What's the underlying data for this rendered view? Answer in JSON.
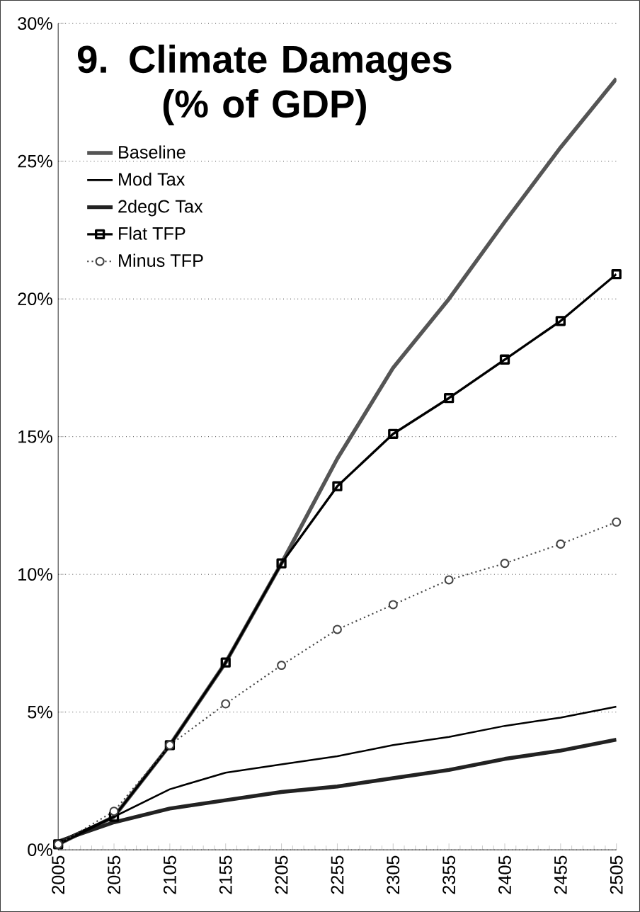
{
  "chart_data": {
    "type": "line",
    "title": "9. Climate Damages (% of GDP)",
    "x": [
      2005,
      2055,
      2105,
      2155,
      2205,
      2255,
      2305,
      2355,
      2405,
      2455,
      2505
    ],
    "series": [
      {
        "name": "Baseline",
        "color": "#555555",
        "marker": "none",
        "line_style": "solid",
        "values": [
          0.2,
          1.2,
          3.8,
          6.8,
          10.4,
          14.2,
          17.5,
          20.0,
          22.8,
          25.5,
          28.0
        ]
      },
      {
        "name": "Mod Tax",
        "color": "#000000",
        "marker": "none",
        "line_style": "solid",
        "values": [
          0.3,
          1.2,
          2.2,
          2.8,
          3.1,
          3.4,
          3.8,
          4.1,
          4.5,
          4.8,
          5.2
        ]
      },
      {
        "name": "2degC Tax",
        "color": "#222222",
        "marker": "none",
        "line_style": "solid",
        "values": [
          0.3,
          1.0,
          1.5,
          1.8,
          2.1,
          2.3,
          2.6,
          2.9,
          3.3,
          3.6,
          4.0
        ]
      },
      {
        "name": "Flat TFP",
        "color": "#000000",
        "marker": "square",
        "line_style": "solid",
        "values": [
          0.2,
          1.2,
          3.8,
          6.8,
          10.4,
          13.2,
          15.1,
          16.4,
          17.8,
          19.2,
          20.9
        ]
      },
      {
        "name": "Minus TFP",
        "color": "#444444",
        "marker": "circle",
        "line_style": "dotted",
        "values": [
          0.2,
          1.4,
          3.8,
          5.3,
          6.7,
          8.0,
          8.9,
          9.8,
          10.4,
          11.1,
          11.9
        ]
      }
    ],
    "xlim": [
      2005,
      2505
    ],
    "xticks": [
      2005,
      2055,
      2105,
      2155,
      2205,
      2255,
      2305,
      2355,
      2405,
      2455,
      2505
    ],
    "ylim": [
      0,
      30
    ],
    "yticks": [
      {
        "value": 0,
        "label": "0%"
      },
      {
        "value": 5,
        "label": "5%"
      },
      {
        "value": 10,
        "label": "10%"
      },
      {
        "value": 15,
        "label": "15%"
      },
      {
        "value": 20,
        "label": "20%"
      },
      {
        "value": 25,
        "label": "25%"
      },
      {
        "value": 30,
        "label": "30%"
      }
    ],
    "grid": "y",
    "legend": "top left"
  }
}
